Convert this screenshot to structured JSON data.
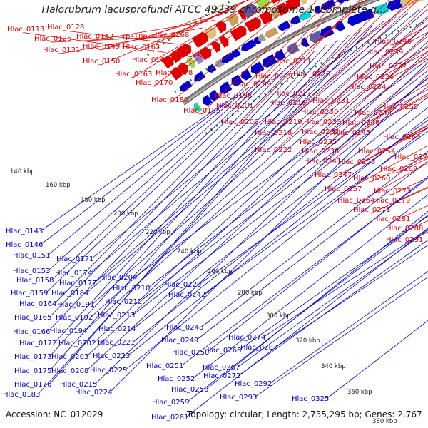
{
  "title": "Halorubrum lacusprofundi ATCC 49239 chromosome 1, complete g...",
  "footer": {
    "accession": "Accession: NC_012029",
    "summary": "Topology: circular; Length: 2,735,295 bp; Genes: 2,767"
  },
  "colors": {
    "forward_label": "#e00000",
    "reverse_label": "#0000cc",
    "backbone": "#8a8a8a",
    "frame_dots": "#1a8a1a"
  },
  "scale_ticks": [
    "140 kbp",
    "160 kbp",
    "180 kbp",
    "200 kbp",
    "220 kbp",
    "240 kbp",
    "260 kbp",
    "280 kbp",
    "300 kbp",
    "320 kbp",
    "340 kbp",
    "360 kbp",
    "380 kbp"
  ],
  "forward_labels": [
    "Hlac_0113",
    "Hlac_0128",
    "Hlac_0126",
    "Hlac_0131",
    "Hlac_0142",
    "Hlac_0149",
    "Hlac_0150",
    "rps10p",
    "Hlac_0162",
    "Hlac_0168",
    "Hlac_0167",
    "Hlac_0163",
    "Hlac_0170",
    "Hlac_0179",
    "Hlac_0178",
    "Hlac_0180",
    "Hlac_0185",
    "Hlac_0198",
    "Hlac_0199",
    "Hlac_0201",
    "Hlac_0206",
    "Hlac_0211",
    "Hlac_0209",
    "Hlac_0217",
    "Hlac_0216",
    "Hlac_0219",
    "Hlac_0218",
    "Hlac_0222",
    "Hlac_0220",
    "Hlac_0231",
    "Hlac_0230",
    "Hlac_0233",
    "Hlac_0232",
    "Hlac_0235",
    "Hlac_0238",
    "Hlac_0241",
    "Hlac_0240",
    "Hlac_0239",
    "Hlac_0237",
    "Hlac_0236",
    "Hlac_0234",
    "Hlac_0244",
    "Hlac_0255",
    "Hlac_0246",
    "Hlac_0245",
    "Hlac_0254",
    "Hlac_0253",
    "Hlac_0247",
    "Hlac_0257",
    "Hlac_0264",
    "Hlac_0263",
    "Hlac_0270",
    "Hlac_0269",
    "Hlac_0260",
    "Hlac_0273",
    "Hlac_0279",
    "Hlac_0271",
    "Hlac_0281",
    "Hlac_0288",
    "Hlac_0291"
  ],
  "reverse_labels": [
    "Hlac_0143",
    "Hlac_0146",
    "Hlac_0151",
    "Hlac_0153",
    "Hlac_0158",
    "Hlac_0159",
    "Hlac_0164",
    "Hlac_0165",
    "Hlac_0166",
    "Hlac_0172",
    "Hlac_0173",
    "Hlac_0175",
    "Hlac_0176",
    "Hlac_0183",
    "Hlac_0171",
    "Hlac_0174",
    "Hlac_0177",
    "Hlac_0184",
    "Hlac_0191",
    "Hlac_0192",
    "Hlac_0194",
    "Hlac_0202",
    "Hlac_0203",
    "Hlac_0208",
    "Hlac_0215",
    "Hlac_0224",
    "Hlac_0204",
    "Hlac_0210",
    "Hlac_0212",
    "Hlac_0213",
    "Hlac_0214",
    "Hlac_0221",
    "Hlac_0223",
    "Hlac_0225",
    "Hlac_0229",
    "Hlac_0242",
    "Hlac_0248",
    "Hlac_0249",
    "Hlac_0250",
    "Hlac_0251",
    "Hlac_0252",
    "Hlac_0258",
    "Hlac_0259",
    "Hlac_0261",
    "Hlac_0266",
    "Hlac_0267",
    "Hlac_0272",
    "Hlac_0274",
    "Hlac_0287",
    "Hlac_0292",
    "Hlac_0293",
    "Hlac_0325"
  ]
}
